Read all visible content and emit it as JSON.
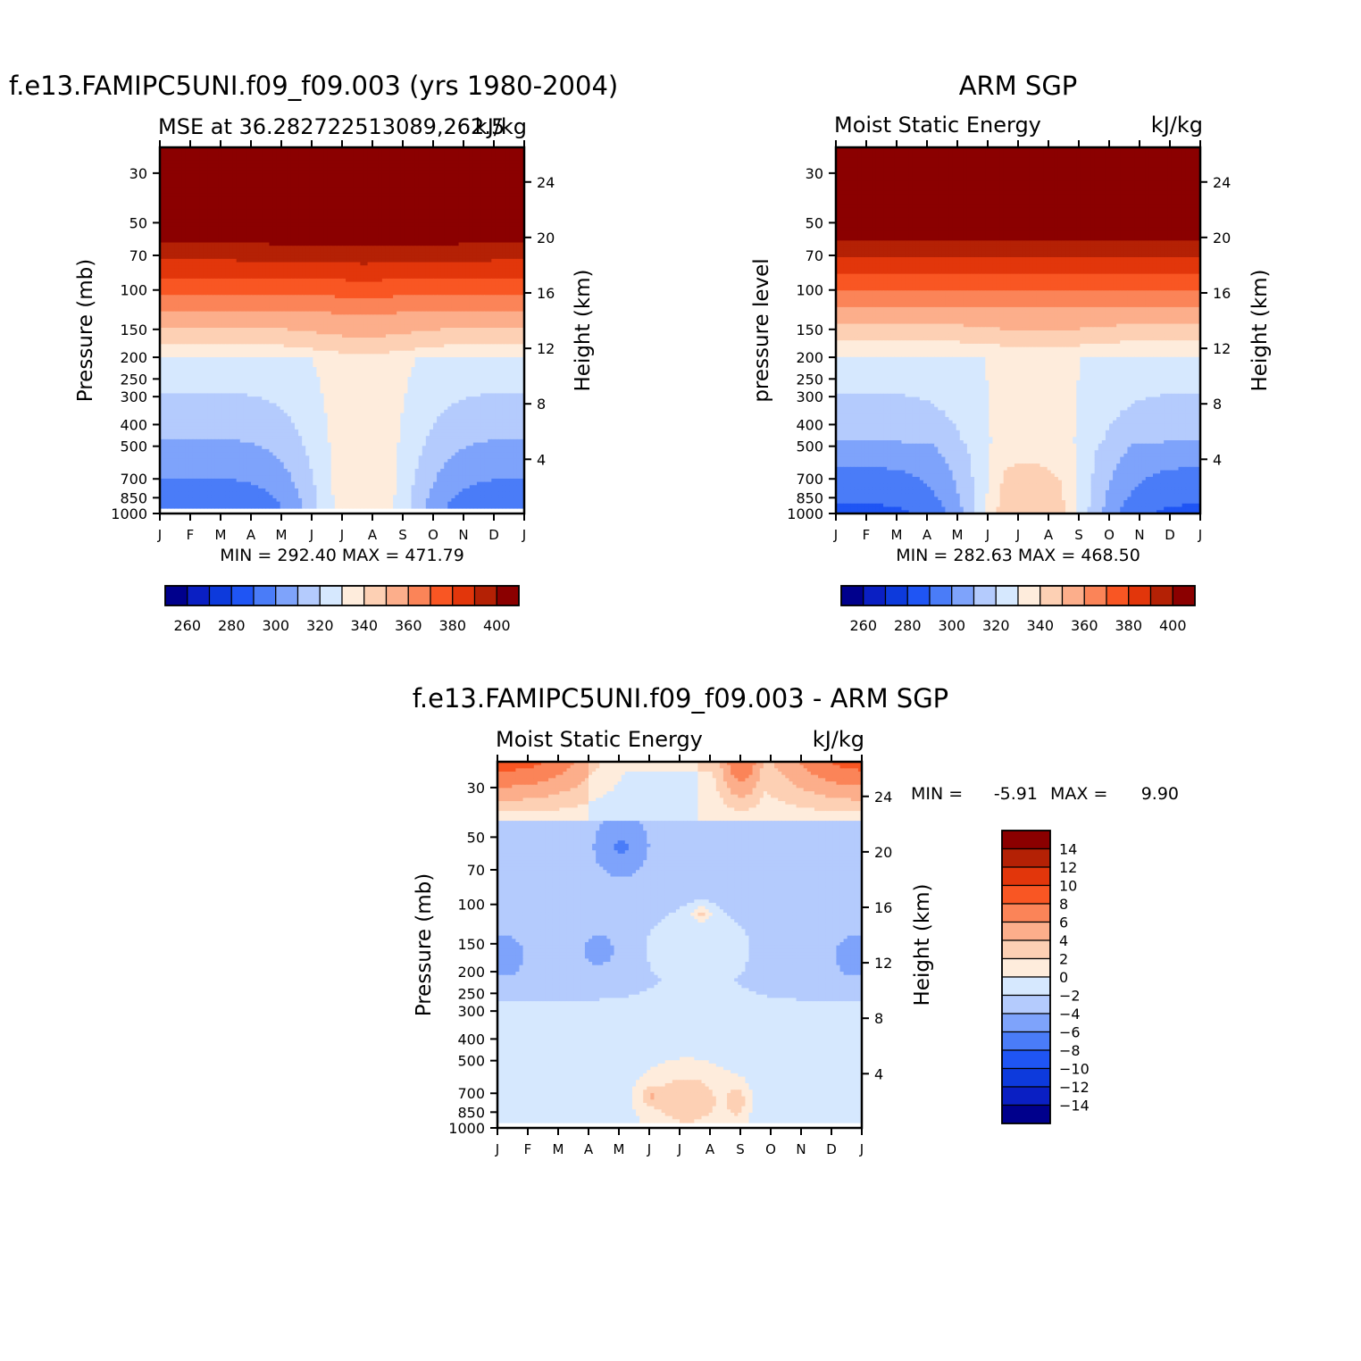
{
  "months": [
    "J",
    "F",
    "M",
    "A",
    "M",
    "J",
    "J",
    "A",
    "S",
    "O",
    "N",
    "D",
    "J"
  ],
  "pressure_levels": [
    1000,
    850,
    700,
    500,
    400,
    300,
    250,
    200,
    150,
    100,
    70,
    50,
    30
  ],
  "height_ticks": [
    4,
    8,
    12,
    16,
    20,
    24
  ],
  "colors": {
    "abs_scale": [
      "#00008c",
      "#0a1fc3",
      "#0d3adc",
      "#1f55f4",
      "#4a7cf8",
      "#7ea3fb",
      "#b4cbfd",
      "#d6e8fe",
      "#feecdc",
      "#fdd0b4",
      "#fcae8b",
      "#fb8458",
      "#f95623",
      "#e2360b",
      "#b42105",
      "#8b0000"
    ],
    "diff_scale": [
      "#00008c",
      "#0a1fc3",
      "#0d3adc",
      "#1f55f4",
      "#4a7cf8",
      "#7ea3fb",
      "#b4cbfd",
      "#d6e8fe",
      "#feecdc",
      "#fdd0b4",
      "#fcae8b",
      "#fb8458",
      "#f95623",
      "#e2360b",
      "#b42105",
      "#8b0000"
    ]
  },
  "chart_data": [
    {
      "type": "heatmap",
      "title": "f.e13.FAMIPC5UNI.f09_f09.003 (yrs 1980-2004)",
      "subtitle_left": "MSE at 36.282722513089,262.5",
      "subtitle_right": "kJ/kg",
      "ylabel": "Pressure (mb)",
      "ylabel_right": "Height (km)",
      "x": [
        "J",
        "F",
        "M",
        "A",
        "M",
        "J",
        "J",
        "A",
        "S",
        "O",
        "N",
        "D",
        "J"
      ],
      "y_pressure": [
        1000,
        850,
        700,
        500,
        400,
        300,
        250,
        200,
        150,
        100,
        70,
        50,
        30
      ],
      "min": "292.40",
      "max": "471.79",
      "stats_text": "MIN = 292.40 MAX = 471.79",
      "levels": [
        260,
        270,
        280,
        290,
        300,
        310,
        320,
        330,
        340,
        350,
        360,
        370,
        380,
        390,
        400
      ],
      "colorbar_labels": [
        "260",
        "280",
        "300",
        "320",
        "340",
        "360",
        "380",
        "400"
      ],
      "profile_mid_year": [
        310,
        315,
        322,
        326,
        328,
        330,
        333,
        337,
        345,
        362,
        381,
        405,
        440
      ],
      "profile_summer": [
        335,
        336,
        334,
        333,
        333,
        334,
        335,
        337,
        347,
        363,
        380,
        402,
        440
      ]
    },
    {
      "type": "heatmap",
      "title": "ARM SGP",
      "subtitle_left": "Moist Static Energy",
      "subtitle_right": "kJ/kg",
      "ylabel": "pressure level",
      "ylabel_right": "Height (km)",
      "x": [
        "J",
        "F",
        "M",
        "A",
        "M",
        "J",
        "J",
        "A",
        "S",
        "O",
        "N",
        "D",
        "J"
      ],
      "y_pressure": [
        1000,
        850,
        700,
        500,
        400,
        300,
        250,
        200,
        150,
        100,
        70,
        50,
        30
      ],
      "min": "282.63",
      "max": "468.50",
      "stats_text": "MIN = 282.63 MAX = 468.50",
      "levels": [
        260,
        270,
        280,
        290,
        300,
        310,
        320,
        330,
        340,
        350,
        360,
        370,
        380,
        390,
        400
      ],
      "colorbar_labels": [
        "260",
        "280",
        "300",
        "320",
        "340",
        "360",
        "380",
        "400"
      ]
    },
    {
      "type": "heatmap",
      "title": "f.e13.FAMIPC5UNI.f09_f09.003 - ARM SGP",
      "subtitle_left": "Moist Static Energy",
      "subtitle_right": "kJ/kg",
      "ylabel": "Pressure (mb)",
      "ylabel_right": "Height (km)",
      "x": [
        "J",
        "F",
        "M",
        "A",
        "M",
        "J",
        "J",
        "A",
        "S",
        "O",
        "N",
        "D",
        "J"
      ],
      "y_pressure": [
        1000,
        850,
        700,
        500,
        400,
        300,
        250,
        200,
        150,
        100,
        70,
        50,
        30
      ],
      "min": "-5.91",
      "max": "9.90",
      "stats_min_label": "MIN =",
      "stats_min_value": "-5.91",
      "stats_max_label": "MAX =",
      "stats_max_value": "9.90",
      "levels": [
        -14,
        -12,
        -10,
        -8,
        -6,
        -4,
        -2,
        0,
        2,
        4,
        6,
        8,
        10,
        12,
        14
      ],
      "colorbar_labels": [
        "14",
        "12",
        "10",
        "8",
        "6",
        "4",
        "2",
        "0",
        "-2",
        "-4",
        "-6",
        "-8",
        "-10",
        "-12",
        "-14"
      ]
    }
  ]
}
